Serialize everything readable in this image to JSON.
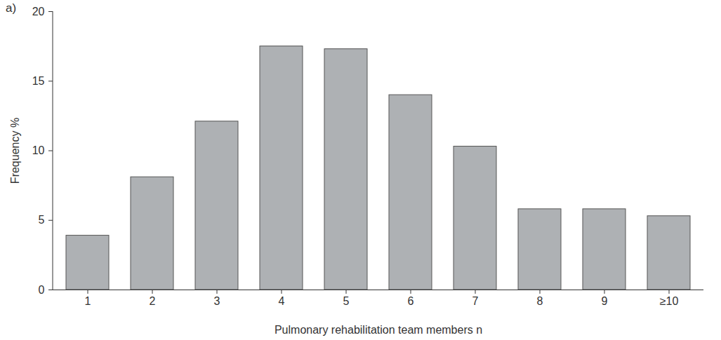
{
  "chart_data": {
    "type": "bar",
    "title": "a)",
    "xlabel": "Pulmonary rehabilitation team members n",
    "ylabel": "Frequency %",
    "categories": [
      "1",
      "2",
      "3",
      "4",
      "5",
      "6",
      "7",
      "8",
      "9",
      "≥10"
    ],
    "values": [
      3.9,
      8.1,
      12.1,
      17.5,
      17.3,
      14.0,
      10.3,
      5.8,
      5.8,
      5.3
    ],
    "color": "#aeb1b4",
    "ylim": [
      0,
      20
    ],
    "yticks": [
      0,
      5,
      10,
      15,
      20
    ],
    "grid": false,
    "data_labels": false
  }
}
